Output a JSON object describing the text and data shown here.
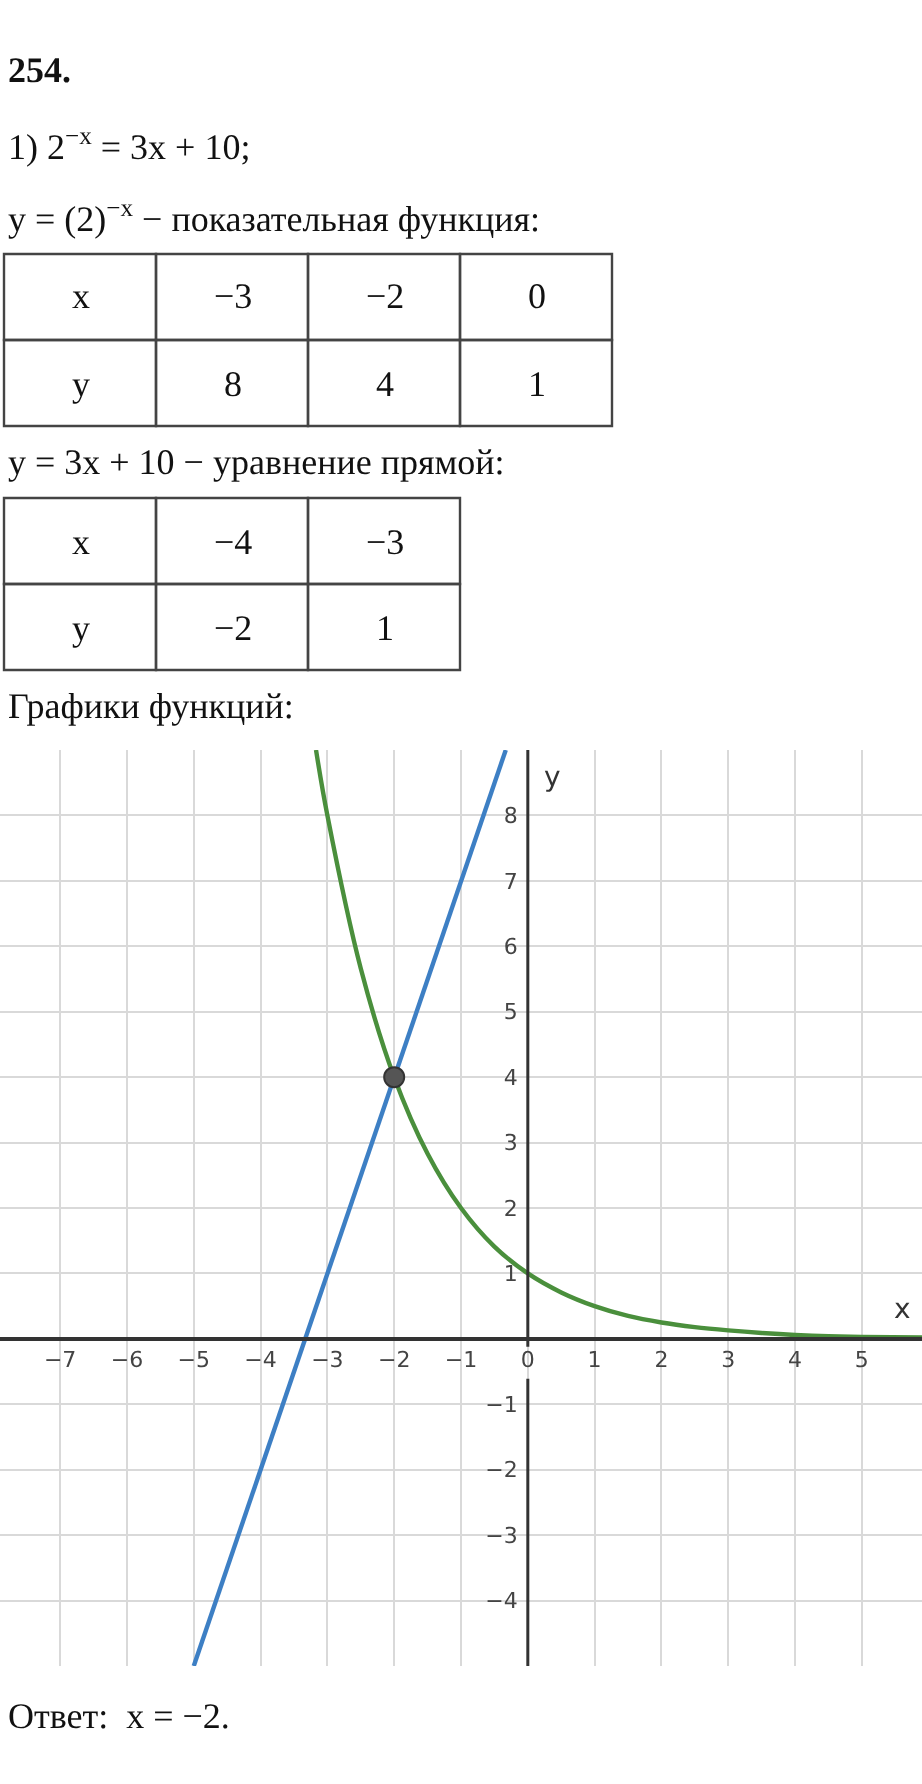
{
  "chart_data": {
    "type": "line",
    "title": "254.",
    "xlabel": "x",
    "ylabel": "y",
    "annotations": [
      "1) 2$^{−x}$ = 3x + 10;",
      "y = (2)$^{−x}$ − показательная функция:",
      "x\t−3\t−2\t0",
      "y\t8\t4\t1",
      "y = 3x + 10 − уравнение прямой:",
      "x\t−4\t−3",
      "y\t−2\t1",
      "Графики функций:",
      "Ответ:  x = −2."
    ],
    "series": [
      {
        "color": "#4a8f3c",
        "x": [
          -3.17,
          -3,
          -2.5,
          -2,
          -1.5,
          -1,
          -0.5,
          0,
          0.5,
          1,
          1.5,
          2,
          2.5,
          3,
          3.5,
          4,
          4.5,
          5,
          5.9
        ],
        "values": [
          9.0,
          8,
          5.66,
          4,
          2.83,
          2,
          1.41,
          1,
          0.71,
          0.5,
          0.35,
          0.25,
          0.18,
          0.13,
          0.09,
          0.06,
          0.04,
          0.03,
          0.02
        ]
      },
      {
        "color": "#3d7fc4",
        "x": [
          -5,
          -0.33
        ],
        "values": [
          -5,
          9
        ]
      },
      {
        "type": "scatter",
        "color": "#555555",
        "x": [
          -2
        ],
        "values": [
          4
        ]
      }
    ],
    "xlim": [
      -7.9,
      5.9
    ],
    "ylim": [
      -5,
      9
    ],
    "xticks": [
      -7,
      -6,
      -5,
      -4,
      -3,
      -2,
      -1,
      0,
      1,
      2,
      3,
      4,
      5
    ],
    "yticks": [
      -4,
      -3,
      -2,
      -1,
      1,
      2,
      3,
      4,
      5,
      6,
      7,
      8
    ],
    "grid": true
  }
}
